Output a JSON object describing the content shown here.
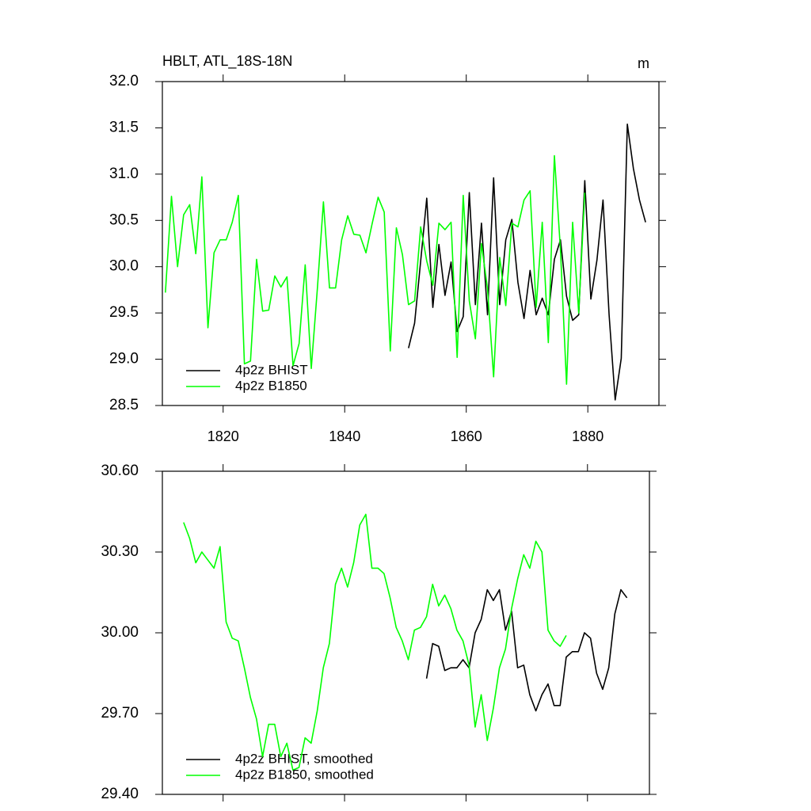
{
  "chart_data": [
    {
      "type": "line",
      "title": "HBLT, ATL_18S-18N",
      "units": "m",
      "xlim": [
        1810,
        1891.7
      ],
      "xticks": [
        1820,
        1840,
        1860,
        1880
      ],
      "xticklabels": true,
      "ylim": [
        28.5,
        32.0
      ],
      "yticks": [
        {
          "value": 28.5,
          "label": "28.5"
        },
        {
          "value": 29,
          "label": "29.0"
        },
        29.5,
        {
          "value": 30,
          "label": "30.0"
        },
        30.5,
        {
          "value": 31,
          "label": "31.0"
        },
        31.5,
        {
          "value": 32,
          "label": "32.0"
        }
      ],
      "legend": "lower left",
      "series": [
        {
          "name": "4p2z BHIST",
          "color": "#000000",
          "x": [
            1850.5,
            1851.5,
            1852.5,
            1853.5,
            1854.5,
            1855.5,
            1856.5,
            1857.5,
            1858.5,
            1859.5,
            1860.5,
            1861.5,
            1862.5,
            1863.5,
            1864.5,
            1865.5,
            1866.5,
            1867.5,
            1868.5,
            1869.5,
            1870.5,
            1871.5,
            1872.5,
            1873.5,
            1874.5,
            1875.5,
            1876.5,
            1877.5,
            1878.5,
            1879.5,
            1880.5,
            1881.5,
            1882.5,
            1883.5,
            1884.5,
            1885.5,
            1886.5,
            1887.5,
            1888.5,
            1889.5
          ],
          "values": [
            29.12,
            29.39,
            30.06,
            30.74,
            29.56,
            30.24,
            29.69,
            30.05,
            29.3,
            29.46,
            30.8,
            29.59,
            30.47,
            29.48,
            30.96,
            29.59,
            30.29,
            30.51,
            29.83,
            29.44,
            29.96,
            29.48,
            29.66,
            29.48,
            30.08,
            30.29,
            29.68,
            29.42,
            29.48,
            30.93,
            29.65,
            30.07,
            30.72,
            29.48,
            28.56,
            29.01,
            31.54,
            31.06,
            30.72,
            30.48
          ]
        },
        {
          "name": "4p2z B1850",
          "color": "#00ff00",
          "x": [
            1810.5,
            1811.5,
            1812.5,
            1813.5,
            1814.5,
            1815.5,
            1816.5,
            1817.5,
            1818.5,
            1819.5,
            1820.5,
            1821.5,
            1822.5,
            1823.5,
            1824.5,
            1825.5,
            1826.5,
            1827.5,
            1828.5,
            1829.5,
            1830.5,
            1831.5,
            1832.5,
            1833.5,
            1834.5,
            1835.5,
            1836.5,
            1837.5,
            1838.5,
            1839.5,
            1840.5,
            1841.5,
            1842.5,
            1843.5,
            1844.5,
            1845.5,
            1846.5,
            1847.5,
            1848.5,
            1849.5,
            1850.5,
            1851.5,
            1852.5,
            1853.5,
            1854.5,
            1855.5,
            1856.5,
            1857.5,
            1858.5,
            1859.5,
            1860.5,
            1861.5,
            1862.5,
            1863.5,
            1864.5,
            1865.5,
            1866.5,
            1867.5,
            1868.5,
            1869.5,
            1870.5,
            1871.5,
            1872.5,
            1873.5,
            1874.5,
            1875.5,
            1876.5,
            1877.5,
            1878.5,
            1879.5
          ],
          "values": [
            29.72,
            30.76,
            30.0,
            30.56,
            30.67,
            30.14,
            30.97,
            29.34,
            30.15,
            30.29,
            30.29,
            30.48,
            30.77,
            28.95,
            28.98,
            30.08,
            29.52,
            29.53,
            29.9,
            29.78,
            29.89,
            28.93,
            29.17,
            30.02,
            28.9,
            29.76,
            30.7,
            29.77,
            29.77,
            30.29,
            30.55,
            30.35,
            30.34,
            30.15,
            30.46,
            30.75,
            30.59,
            29.09,
            30.42,
            30.13,
            29.59,
            29.63,
            30.43,
            30.06,
            29.8,
            30.47,
            30.4,
            30.48,
            29.02,
            30.77,
            29.63,
            29.22,
            30.25,
            29.76,
            28.81,
            30.1,
            29.58,
            30.47,
            30.43,
            30.72,
            30.82,
            29.56,
            30.48,
            29.18,
            31.2,
            30.18,
            28.73,
            30.48,
            29.5,
            30.8
          ]
        }
      ]
    },
    {
      "type": "line",
      "xlim": [
        1810,
        1890.2
      ],
      "xticks": [
        1820,
        1840,
        1860,
        1880
      ],
      "xticklabels": false,
      "ylim": [
        29.4,
        30.6
      ],
      "yticks": [
        {
          "value": 29.4,
          "label": "29.40"
        },
        {
          "value": 29.7,
          "label": "29.70"
        },
        {
          "value": 30,
          "label": "30.00"
        },
        {
          "value": 30.3,
          "label": "30.30"
        },
        {
          "value": 30.6,
          "label": "30.60"
        }
      ],
      "legend": "lower left",
      "series": [
        {
          "name": "4p2z BHIST, smoothed",
          "color": "#000000",
          "x": [
            1853.5,
            1854.5,
            1855.5,
            1856.5,
            1857.5,
            1858.5,
            1859.5,
            1860.5,
            1861.5,
            1862.5,
            1863.5,
            1864.5,
            1865.5,
            1866.5,
            1867.5,
            1868.5,
            1869.5,
            1870.5,
            1871.5,
            1872.5,
            1873.5,
            1874.5,
            1875.5,
            1876.5,
            1877.5,
            1878.5,
            1879.5,
            1880.5,
            1881.5,
            1882.5,
            1883.5,
            1884.5,
            1885.5,
            1886.5
          ],
          "values": [
            29.83,
            29.96,
            29.95,
            29.86,
            29.87,
            29.87,
            29.9,
            29.87,
            30.0,
            30.05,
            30.16,
            30.12,
            30.16,
            30.01,
            30.08,
            29.87,
            29.88,
            29.77,
            29.71,
            29.77,
            29.81,
            29.73,
            29.73,
            29.91,
            29.93,
            29.93,
            30.0,
            29.98,
            29.85,
            29.79,
            29.87,
            30.07,
            30.16,
            30.13
          ]
        },
        {
          "name": "4p2z B1850, smoothed",
          "color": "#00ff00",
          "x": [
            1813.5,
            1814.5,
            1815.5,
            1816.5,
            1817.5,
            1818.5,
            1819.5,
            1820.5,
            1821.5,
            1822.5,
            1823.5,
            1824.5,
            1825.5,
            1826.5,
            1827.5,
            1828.5,
            1829.5,
            1830.5,
            1831.5,
            1832.5,
            1833.5,
            1834.5,
            1835.5,
            1836.5,
            1837.5,
            1838.5,
            1839.5,
            1840.5,
            1841.5,
            1842.5,
            1843.5,
            1844.5,
            1845.5,
            1846.5,
            1847.5,
            1848.5,
            1849.5,
            1850.5,
            1851.5,
            1852.5,
            1853.5,
            1854.5,
            1855.5,
            1856.5,
            1857.5,
            1858.5,
            1859.5,
            1860.5,
            1861.5,
            1862.5,
            1863.5,
            1864.5,
            1865.5,
            1866.5,
            1867.5,
            1868.5,
            1869.5,
            1870.5,
            1871.5,
            1872.5,
            1873.5,
            1874.5,
            1875.5,
            1876.5
          ],
          "values": [
            30.41,
            30.35,
            30.26,
            30.3,
            30.27,
            30.24,
            30.32,
            30.04,
            29.98,
            29.97,
            29.87,
            29.76,
            29.68,
            29.54,
            29.66,
            29.66,
            29.54,
            29.59,
            29.49,
            29.5,
            29.61,
            29.59,
            29.71,
            29.87,
            29.96,
            30.18,
            30.24,
            30.17,
            30.26,
            30.4,
            30.44,
            30.24,
            30.24,
            30.22,
            30.13,
            30.02,
            29.97,
            29.9,
            30.01,
            30.02,
            30.06,
            30.18,
            30.1,
            30.14,
            30.09,
            30.01,
            29.97,
            29.88,
            29.65,
            29.77,
            29.6,
            29.72,
            29.87,
            29.94,
            30.09,
            30.2,
            30.29,
            30.24,
            30.34,
            30.3,
            30.01,
            29.97,
            29.95,
            29.99
          ]
        }
      ]
    }
  ]
}
